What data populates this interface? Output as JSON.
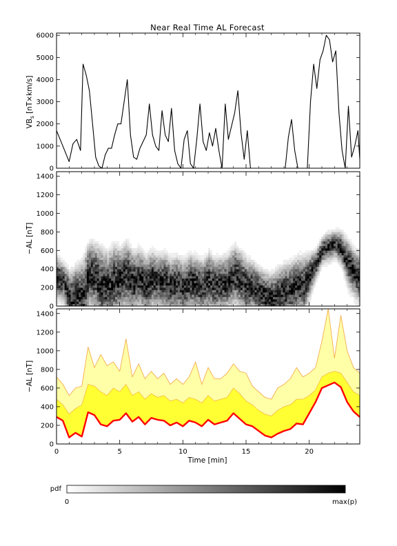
{
  "title": "Near Real Time AL Forecast",
  "colors": {
    "vbs_line": "#000000",
    "forecast_line": "#ff0000",
    "band_inner": "#ffff33",
    "band_outer": "#ffffa8",
    "band_edge": "#f2a23c"
  },
  "chart_data": [
    {
      "type": "line",
      "name": "vbs",
      "ylabel": "VB",
      "ylabel_sub": "s",
      "ylabel_units": "[nT×km/s]",
      "xlim": [
        0,
        24
      ],
      "ylim": [
        0,
        6100
      ],
      "yticks": [
        0,
        1000,
        2000,
        3000,
        4000,
        5000,
        6000
      ],
      "xticks": [
        0,
        5,
        10,
        15,
        20
      ],
      "x": [
        0,
        0.5,
        1,
        1.3,
        1.6,
        1.9,
        2.1,
        2.35,
        2.6,
        2.85,
        3.1,
        3.35,
        3.6,
        3.85,
        4.1,
        4.35,
        4.6,
        4.85,
        5.1,
        5.35,
        5.6,
        5.85,
        6.1,
        6.35,
        6.6,
        6.85,
        7.1,
        7.35,
        7.6,
        7.85,
        8.1,
        8.35,
        8.6,
        8.85,
        9.1,
        9.35,
        9.6,
        9.85,
        10.1,
        10.35,
        10.6,
        10.85,
        11.1,
        11.35,
        11.6,
        11.85,
        12.1,
        12.35,
        12.6,
        12.85,
        13.1,
        13.35,
        13.6,
        13.85,
        14.1,
        14.35,
        14.6,
        14.85,
        15.1,
        15.35,
        15.6,
        15.85,
        16.1,
        16.35,
        16.6,
        16.85,
        17.1,
        17.35,
        17.6,
        17.85,
        18.1,
        18.35,
        18.6,
        18.85,
        19.1,
        19.35,
        19.6,
        19.85,
        20.1,
        20.35,
        20.6,
        20.85,
        21.1,
        21.35,
        21.6,
        21.85,
        22.1,
        22.35,
        22.6,
        22.85,
        23.1,
        23.35,
        23.6,
        23.85,
        24
      ],
      "y": [
        1700,
        1000,
        300,
        1100,
        1300,
        800,
        4700,
        4200,
        3500,
        2000,
        500,
        100,
        0,
        600,
        900,
        900,
        1500,
        2000,
        2000,
        3000,
        4000,
        1500,
        500,
        400,
        900,
        1200,
        1500,
        2900,
        1500,
        1000,
        800,
        2600,
        1500,
        1200,
        2700,
        800,
        200,
        0,
        1300,
        1700,
        200,
        0,
        1300,
        2900,
        1200,
        800,
        1600,
        1000,
        1800,
        800,
        0,
        2900,
        1300,
        1900,
        2500,
        3500,
        1600,
        400,
        1700,
        0,
        0,
        0,
        0,
        0,
        0,
        0,
        0,
        0,
        0,
        0,
        0,
        1400,
        2200,
        800,
        0,
        0,
        0,
        0,
        3000,
        4700,
        3600,
        4900,
        5300,
        6000,
        5800,
        4800,
        5300,
        2500,
        800,
        0,
        2800,
        500,
        1000,
        1700,
        400
      ]
    },
    {
      "type": "heatmap",
      "name": "al_pdf",
      "ylabel": "−AL [nT]",
      "xlim": [
        0,
        24
      ],
      "ylim": [
        0,
        1450
      ],
      "yticks": [
        0,
        200,
        400,
        600,
        800,
        1000,
        1200,
        1400
      ],
      "xticks": [
        0,
        5,
        10,
        15,
        20
      ],
      "colorbar": {
        "label": "pdf",
        "min_label": "0",
        "max_label": "max(p)"
      }
    },
    {
      "type": "area",
      "name": "al_forecast",
      "ylabel": "−AL [nT]",
      "xlabel": "Time [min]",
      "xlim": [
        0,
        24
      ],
      "ylim": [
        0,
        1450
      ],
      "yticks": [
        0,
        200,
        400,
        600,
        800,
        1000,
        1200,
        1400
      ],
      "xticks": [
        0,
        5,
        10,
        15,
        20
      ],
      "x": [
        0,
        0.5,
        1,
        1.5,
        2,
        2.5,
        3,
        3.5,
        4,
        4.5,
        5,
        5.5,
        6,
        6.5,
        7,
        7.5,
        8,
        8.5,
        9,
        9.5,
        10,
        10.5,
        11,
        11.5,
        12,
        12.5,
        13,
        13.5,
        14,
        14.5,
        15,
        15.5,
        16,
        16.5,
        17,
        17.5,
        18,
        18.5,
        19,
        19.5,
        20,
        20.5,
        21,
        21.5,
        22,
        22.5,
        23,
        23.5,
        24
      ],
      "series": [
        {
          "role": "forecast",
          "values": [
            290,
            250,
            70,
            120,
            80,
            340,
            310,
            210,
            190,
            250,
            260,
            330,
            240,
            290,
            210,
            280,
            260,
            250,
            200,
            230,
            190,
            250,
            230,
            190,
            260,
            210,
            230,
            250,
            330,
            270,
            210,
            190,
            140,
            90,
            70,
            110,
            140,
            160,
            220,
            210,
            330,
            450,
            600,
            630,
            660,
            610,
            450,
            350,
            290
          ]
        },
        {
          "role": "inner_upper",
          "values": [
            480,
            420,
            320,
            380,
            420,
            640,
            620,
            560,
            520,
            600,
            560,
            640,
            520,
            560,
            480,
            540,
            500,
            520,
            460,
            480,
            440,
            500,
            480,
            440,
            520,
            460,
            480,
            500,
            600,
            540,
            460,
            420,
            360,
            320,
            300,
            360,
            400,
            420,
            480,
            480,
            520,
            580,
            720,
            760,
            780,
            760,
            660,
            560,
            520
          ]
        },
        {
          "role": "outer_upper",
          "values": [
            720,
            640,
            520,
            600,
            620,
            1040,
            820,
            960,
            840,
            880,
            780,
            1130,
            720,
            860,
            700,
            780,
            700,
            760,
            640,
            700,
            640,
            720,
            880,
            640,
            820,
            700,
            700,
            760,
            860,
            780,
            760,
            620,
            560,
            500,
            480,
            600,
            640,
            700,
            820,
            720,
            760,
            820,
            1100,
            1450,
            920,
            1380,
            1000,
            820,
            760
          ]
        }
      ]
    }
  ]
}
